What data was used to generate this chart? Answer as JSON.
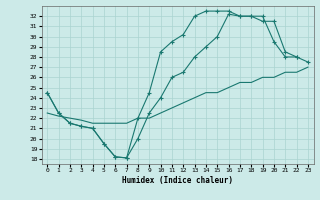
{
  "xlabel": "Humidex (Indice chaleur)",
  "bg_color": "#cceae8",
  "line_color": "#1a7870",
  "grid_color": "#aad4d0",
  "xlim": [
    -0.5,
    23.5
  ],
  "ylim": [
    17.5,
    33.0
  ],
  "xticks": [
    0,
    1,
    2,
    3,
    4,
    5,
    6,
    7,
    8,
    9,
    10,
    11,
    12,
    13,
    14,
    15,
    16,
    17,
    18,
    19,
    20,
    21,
    22,
    23
  ],
  "yticks": [
    18,
    19,
    20,
    21,
    22,
    23,
    24,
    25,
    26,
    27,
    28,
    29,
    30,
    31,
    32
  ],
  "line1_x": [
    0,
    1,
    2,
    3,
    4,
    5,
    6,
    7,
    8,
    9,
    10,
    11,
    12,
    13,
    14,
    15,
    16,
    17,
    18,
    19,
    20,
    21,
    22,
    23
  ],
  "line1_y": [
    24.5,
    22.5,
    21.5,
    21.2,
    21.0,
    19.5,
    18.2,
    18.1,
    20.0,
    22.5,
    24.0,
    26.0,
    26.5,
    28.0,
    29.0,
    30.0,
    32.2,
    32.0,
    32.0,
    32.0,
    29.5,
    28.0,
    28.0,
    27.5
  ],
  "line2_x": [
    0,
    1,
    2,
    3,
    4,
    5,
    6,
    7,
    8,
    9,
    10,
    11,
    12,
    13,
    14,
    15,
    16,
    17,
    18,
    19,
    20,
    21,
    22
  ],
  "line2_y": [
    24.5,
    22.5,
    21.5,
    21.2,
    21.0,
    19.5,
    18.2,
    18.1,
    22.0,
    24.5,
    28.5,
    29.5,
    30.2,
    32.0,
    32.5,
    32.5,
    32.5,
    32.0,
    32.0,
    31.5,
    31.5,
    28.5,
    28.0
  ],
  "line3_x": [
    0,
    1,
    2,
    3,
    4,
    5,
    6,
    7,
    8,
    9,
    10,
    11,
    12,
    13,
    14,
    15,
    16,
    17,
    18,
    19,
    20,
    21,
    22,
    23
  ],
  "line3_y": [
    22.5,
    22.2,
    22.0,
    21.8,
    21.5,
    21.5,
    21.5,
    21.5,
    22.0,
    22.0,
    22.5,
    23.0,
    23.5,
    24.0,
    24.5,
    24.5,
    25.0,
    25.5,
    25.5,
    26.0,
    26.0,
    26.5,
    26.5,
    27.0
  ]
}
